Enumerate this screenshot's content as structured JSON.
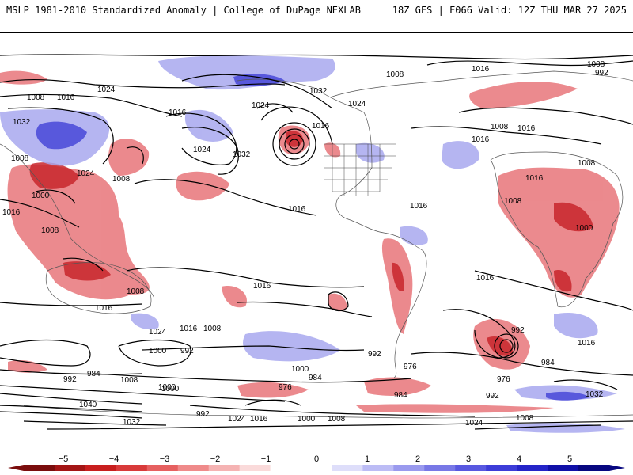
{
  "header": {
    "left_title": "MSLP 1981-2010 Standardized Anomaly | College of DuPage NEXLAB",
    "right_title": "18Z GFS | F066 Valid: 12Z THU MAR 27 2025"
  },
  "isobar_labels": [
    "1008",
    "1016",
    "1024",
    "1032",
    "1016",
    "1008",
    "1024",
    "1032",
    "1016",
    "1024",
    "1008",
    "1016",
    "1016",
    "1032",
    "1024",
    "1016",
    "1008",
    "992",
    "1008",
    "1016",
    "1024",
    "1016",
    "1008",
    "1008",
    "1000",
    "1008",
    "1000",
    "1016",
    "1008",
    "1016",
    "1016",
    "1024",
    "1016",
    "1008",
    "1000",
    "992",
    "1008",
    "1016",
    "1016",
    "1000",
    "992",
    "984",
    "976",
    "1000",
    "984",
    "992",
    "984",
    "976",
    "992",
    "976",
    "1032",
    "984",
    "1016",
    "1008",
    "1040",
    "1000",
    "992",
    "1024",
    "1016",
    "1000",
    "1008",
    "1032",
    "1024",
    "1008",
    "992"
  ],
  "colorbar": {
    "ticks": [
      "−5",
      "−4",
      "−3",
      "−2",
      "−1",
      "0",
      "1",
      "2",
      "3",
      "4",
      "5"
    ],
    "colors": [
      "#7a0d0d",
      "#a31515",
      "#c81e1e",
      "#d83a3a",
      "#e66060",
      "#ef8a8a",
      "#f5b3b3",
      "#fadada",
      "#ffffff",
      "#ffffff",
      "#dedefa",
      "#bcbcf5",
      "#9a9aee",
      "#7878e6",
      "#5858e0",
      "#3c3cd8",
      "#2424c8",
      "#1010a8",
      "#070780"
    ]
  },
  "colors": {
    "red_anomaly": "#e05a5a",
    "blue_anomaly": "#8080e8",
    "isobar": "#000000",
    "border": "#333333"
  }
}
